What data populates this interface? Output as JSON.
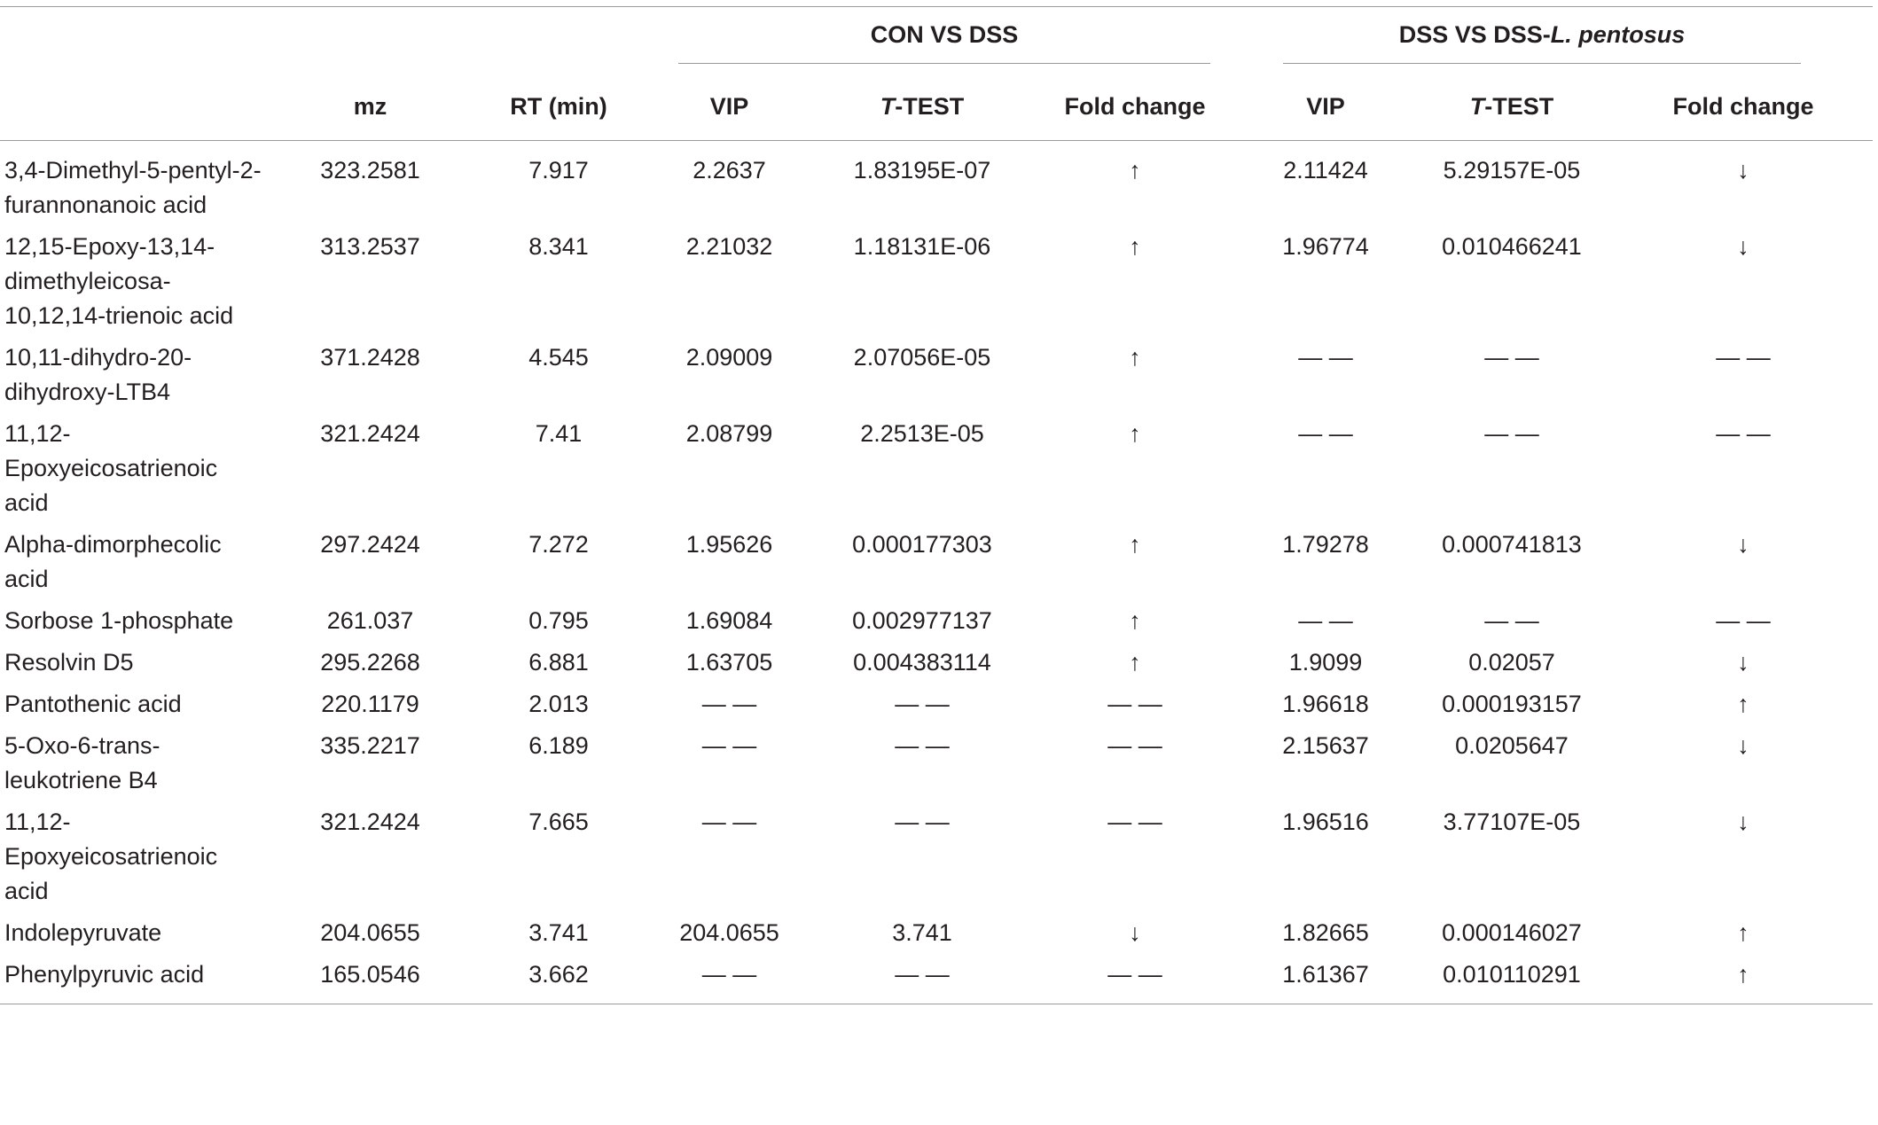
{
  "table": {
    "groups": [
      [
        {
          "text": "CON VS DSS"
        }
      ],
      [
        {
          "text": "DSS VS DSS-"
        },
        {
          "text": "L. pentosus",
          "italic": true
        }
      ]
    ],
    "columns": [
      [
        {
          "text": "mz"
        }
      ],
      [
        {
          "text": "RT (min)"
        }
      ],
      [
        {
          "text": "VIP"
        }
      ],
      [
        {
          "text": "T",
          "italic": true
        },
        {
          "text": "-TEST"
        }
      ],
      [
        {
          "text": "Fold change"
        }
      ],
      [
        {
          "text": "VIP"
        }
      ],
      [
        {
          "text": "T",
          "italic": true
        },
        {
          "text": "-TEST"
        }
      ],
      [
        {
          "text": "Fold change"
        }
      ]
    ],
    "rows": [
      [
        "3,4-Dimethyl-5-pentyl-2-furannonanoic acid",
        "323.2581",
        "7.917",
        "2.2637",
        "1.83195E-07",
        "↑",
        "2.11424",
        "5.29157E-05",
        "↓"
      ],
      [
        "12,15-Epoxy-13,14-dimethyleicosa-10,12,14-trienoic acid",
        "313.2537",
        "8.341",
        "2.21032",
        "1.18131E-06",
        "↑",
        "1.96774",
        "0.010466241",
        "↓"
      ],
      [
        "10,11-dihydro-20-dihydroxy-LTB4",
        "371.2428",
        "4.545",
        "2.09009",
        "2.07056E-05",
        "↑",
        "— —",
        "— —",
        "— —"
      ],
      [
        "11,12-Epoxyeicosatrienoic acid",
        "321.2424",
        "7.41",
        "2.08799",
        "2.2513E-05",
        "↑",
        "— —",
        "— —",
        "— —"
      ],
      [
        "Alpha-dimorphecolic acid",
        "297.2424",
        "7.272",
        "1.95626",
        "0.000177303",
        "↑",
        "1.79278",
        "0.000741813",
        "↓"
      ],
      [
        "Sorbose 1-phosphate",
        "261.037",
        "0.795",
        "1.69084",
        "0.002977137",
        "↑",
        "— —",
        "— —",
        "— —"
      ],
      [
        "Resolvin D5",
        "295.2268",
        "6.881",
        "1.63705",
        "0.004383114",
        "↑",
        "1.9099",
        "0.02057",
        "↓"
      ],
      [
        "Pantothenic acid",
        "220.1179",
        "2.013",
        "— —",
        "— —",
        "— —",
        "1.96618",
        "0.000193157",
        "↑"
      ],
      [
        "5-Oxo-6-trans-leukotriene B4",
        "335.2217",
        "6.189",
        "— —",
        "— —",
        "— —",
        "2.15637",
        "0.0205647",
        "↓"
      ],
      [
        "11,12-Epoxyeicosatrienoic acid",
        "321.2424",
        "7.665",
        "— —",
        "— —",
        "— —",
        "1.96516",
        "3.77107E-05",
        "↓"
      ],
      [
        "Indolepyruvate",
        "204.0655",
        "3.741",
        "204.0655",
        "3.741",
        "↓",
        "1.82665",
        "0.000146027",
        "↑"
      ],
      [
        "Phenylpyruvic acid",
        "165.0546",
        "3.662",
        "— —",
        "— —",
        "— —",
        "1.61367",
        "0.010110291",
        "↑"
      ]
    ]
  }
}
